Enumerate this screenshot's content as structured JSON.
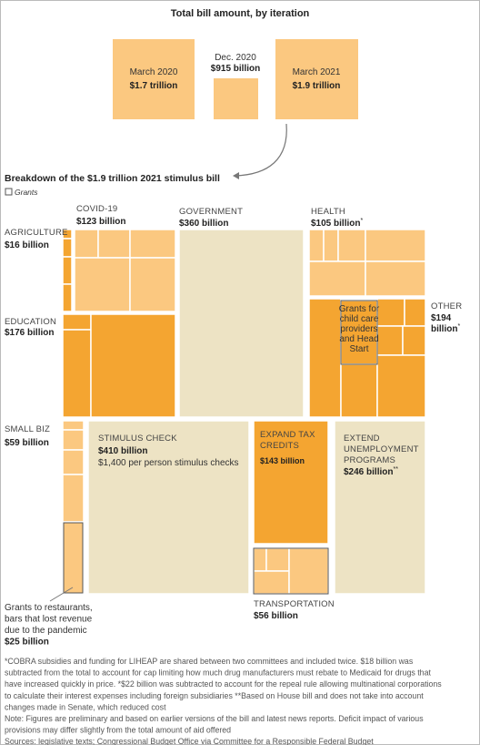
{
  "header": {
    "title": "Total bill amount, by iteration"
  },
  "iterations": [
    {
      "label": "March 2020",
      "amount": "$1.7 trillion"
    },
    {
      "label": "Dec. 2020",
      "amount": "$915 billion"
    },
    {
      "label": "March 2021",
      "amount": "$1.9 trillion"
    }
  ],
  "breakdown": {
    "title": "Breakdown of the $1.9 trillion 2021 stimulus bill",
    "legend": "Grants"
  },
  "categories": {
    "agriculture": {
      "name": "AGRICULTURE",
      "amount": "$16 billion"
    },
    "covid": {
      "name": "COVID-19",
      "amount": "$123 billion"
    },
    "government": {
      "name": "GOVERNMENT",
      "amount": "$360 billion"
    },
    "health": {
      "name": "HEALTH",
      "amount": "$105 billion",
      "note": "*"
    },
    "other": {
      "name": "OTHER",
      "amount": [
        "$194",
        "billion"
      ],
      "note": "*"
    },
    "education": {
      "name": "EDUCATION",
      "amount": "$176 billion"
    },
    "small_biz": {
      "name": "SMALL BIZ",
      "amount": "$59 billion"
    },
    "stimulus_check": {
      "name": "STIMULUS CHECK",
      "amount": "$410 billion",
      "detail": "$1,400 per person stimulus checks"
    },
    "expand_tax": {
      "name": [
        "EXPAND TAX",
        "CREDITS"
      ],
      "amount": "$143 billion"
    },
    "unemployment": {
      "name": [
        "EXTEND",
        "UNEMPLOYMENT",
        "PROGRAMS"
      ],
      "amount": "$246 billion",
      "note": "**"
    },
    "transportation": {
      "name": "TRANSPORTATION",
      "amount": "$56 billion"
    }
  },
  "annotations": {
    "child_care": [
      "Grants for",
      "child care",
      "providers",
      "and Head",
      "Start"
    ],
    "restaurants": [
      "Grants to restaurants,",
      "bars that lost revenue",
      "due to the pandemic",
      "$25 billion"
    ]
  },
  "footnotes": [
    "*COBRA subsidies and funding for LIHEAP are shared between two committees and included twice. $18 billion was",
    "subtracted from the total to account for cap limiting how much drug manufacturers must rebate to Medicaid for drugs that",
    "have increased quickly in price.  *$22 billion was subtracted to account for the repeal rule allowing multinational corporations",
    "to calculate their interest expenses including foreign subsidiaries  **Based on House bill and does not take into account",
    "changes made in Senate, which reduced cost",
    "Note: Figures are preliminary and based on earlier versions of the bill and latest news reports. Deficit impact of various",
    "provisions may differ slightly from the total amount of aid offered",
    "Sources: legislative texts; Congressional Budget Office via Committee for a Responsible Federal Budget"
  ]
}
